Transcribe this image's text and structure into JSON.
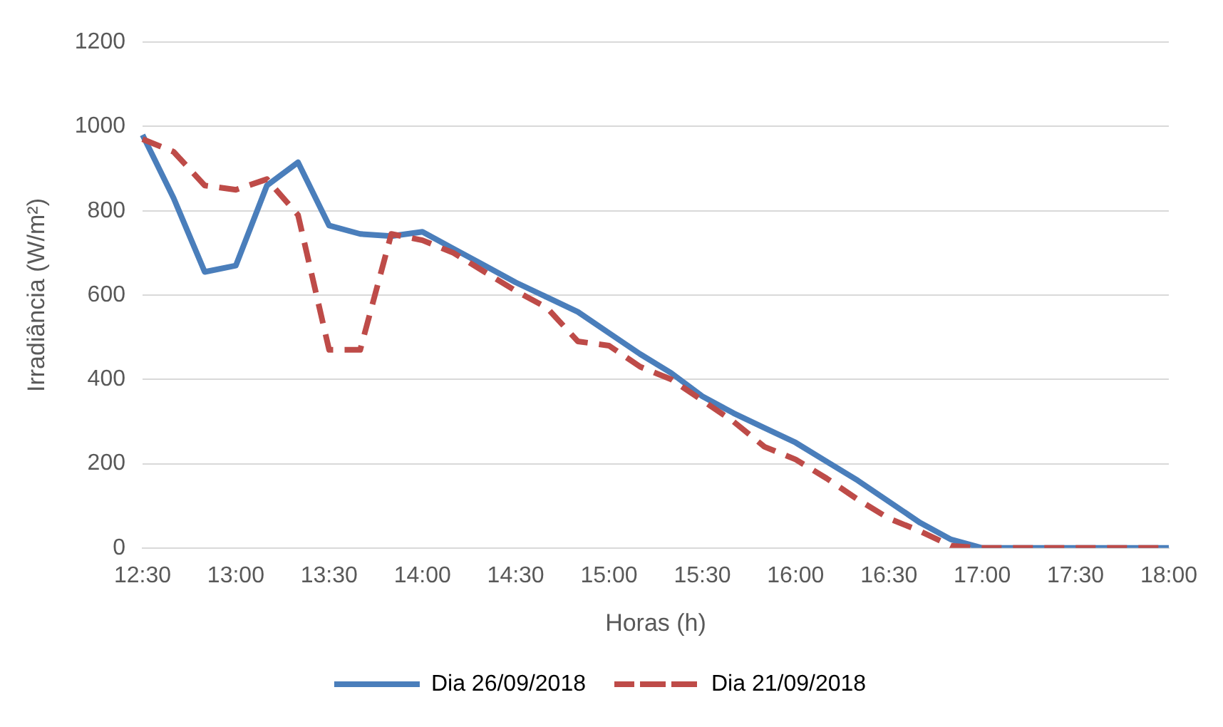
{
  "chart_data": {
    "type": "line",
    "xlabel": "Horas (h)",
    "ylabel": "Irradiância (W/m²)",
    "categories": [
      "12:30",
      null,
      null,
      "13:00",
      null,
      null,
      "13:30",
      null,
      null,
      "14:00",
      null,
      null,
      "14:30",
      null,
      null,
      "15:00",
      null,
      null,
      "15:30",
      null,
      null,
      "16:00",
      null,
      null,
      "16:30",
      null,
      null,
      "17:00",
      null,
      null,
      "17:30",
      null,
      null,
      "18:00"
    ],
    "series": [
      {
        "name": "Dia 26/09/2018",
        "color": "#4a7ebb",
        "line_style": "solid",
        "values": [
          980,
          830,
          655,
          670,
          860,
          915,
          765,
          745,
          740,
          750,
          710,
          670,
          630,
          595,
          560,
          510,
          460,
          415,
          360,
          320,
          285,
          250,
          205,
          160,
          110,
          60,
          20,
          0,
          0,
          0,
          0,
          0,
          0,
          0
        ]
      },
      {
        "name": "Dia 21/09/2018",
        "color": "#be4b48",
        "line_style": "dashed",
        "values": [
          970,
          940,
          860,
          850,
          875,
          790,
          470,
          470,
          745,
          730,
          700,
          655,
          610,
          570,
          490,
          480,
          430,
          400,
          350,
          300,
          240,
          210,
          165,
          115,
          70,
          40,
          5,
          0,
          0,
          0,
          0,
          0,
          0,
          0
        ]
      }
    ],
    "ylim": [
      0,
      1200
    ],
    "yticks": [
      0,
      200,
      400,
      600,
      800,
      1000,
      1200
    ],
    "grid": "y",
    "legend": "bottom",
    "marker": "none"
  }
}
